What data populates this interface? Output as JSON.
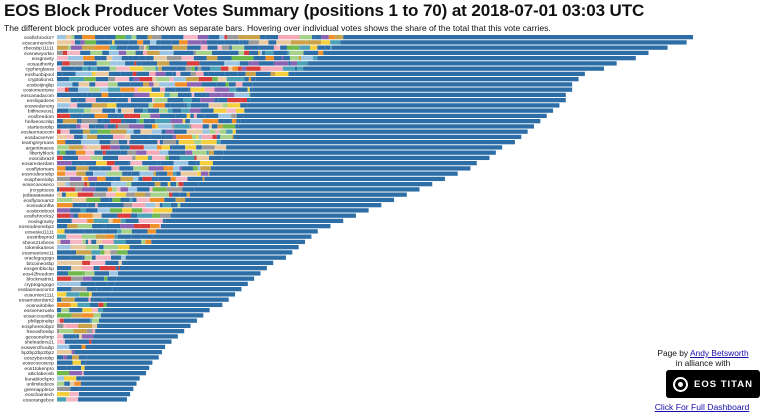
{
  "title": "EOS Block Producer Votes Summary (positions 1 to 70) at 2018-07-01 03:03 UTC",
  "subtitle": "The different block producer votes are shown as separate bars. Hovering over individual votes shows the share of the total that this vote carries.",
  "credit": {
    "prefix": "Page by",
    "author": "Andy Betsworth",
    "alliance": "in alliance with",
    "logo_text": "EOS TITAN",
    "dashboard_link": "Click For Full Dashboard"
  },
  "colors": {
    "main_bar": "#2d6ea6",
    "palette": [
      "#f0902a",
      "#9bc5e3",
      "#6fb84c",
      "#f6b7c5",
      "#999999",
      "#c9a24a",
      "#e9c9a0",
      "#a6d28c",
      "#d93c3a",
      "#8a63b3",
      "#f4d03f",
      "#f7a8b6",
      "#4aa0b5"
    ]
  },
  "chart_data": {
    "type": "bar",
    "orientation": "horizontal",
    "stacked": true,
    "grid": false,
    "legend": "none",
    "categories": [
      "eosfishrocks?",
      "eoscannonchn",
      "zbeosbp11111",
      "eosnewyorkio",
      "eosgravity",
      "eosauthority",
      "cypherglasss",
      "eoshuobipool",
      "cryptolions1",
      "eosbeijingbp",
      "eosiomeetone",
      "eoscanadacom",
      "eosliquideos",
      "eoswedenorg",
      "bitfinexeos1",
      "eosfreedom",
      "helloeoscnbp",
      "starteosiobp",
      "eoslaomaocom",
      "eosdacserver",
      "teamgreymass",
      "argentinaeos",
      "libertyblock",
      "eosriobrazil",
      "eosamsterdam",
      "eosflytomars",
      "eosnodeonebp",
      "eosphereiobp",
      "eosecoeoseco",
      "jrcryptoeos",
      "jedaaaaaaaaa",
      "eosflytomars2",
      "eosnationftw",
      "eosbixinboot",
      "eosfishrocks2",
      "eosisgravity",
      "eosnodeonebp2",
      "eosasia11111",
      "eostribeprod",
      "sheos21sheos",
      "tokenika4eos",
      "eosmeetone11",
      "oraclegogogo",
      "bitcoineosbp",
      "eosgenblockp",
      "eos42freedom",
      "blockmatrix1",
      "cryptogogogo",
      "eoslaomaocom2",
      "eosunion1111",
      "eosamsterdam2",
      "eosnairobike",
      "eosvenezuela",
      "eosaccountbp",
      "philippinebp",
      "eosphereiobp2",
      "freeosfreebp",
      "geosonefortp",
      "sheleaders21",
      "eoswenzhoubp",
      "bp2bp2bp2bp2",
      "eoszybexiobp",
      "eosecoeosecp",
      "eos1tokenpro",
      "atticlabeosb",
      "kunablockpro",
      "unlimitedeos",
      "greenapple1e",
      "eoschaintech",
      "eosorangebox"
    ],
    "series": [
      {
        "values": [
          1.0,
          0.99,
          0.96,
          0.93,
          0.91,
          0.88,
          0.86,
          0.83,
          0.82,
          0.81,
          0.81,
          0.8,
          0.8,
          0.79,
          0.78,
          0.77,
          0.76,
          0.75,
          0.74,
          0.73,
          0.72,
          0.7,
          0.69,
          0.68,
          0.66,
          0.65,
          0.63,
          0.61,
          0.59,
          0.57,
          0.55,
          0.53,
          0.51,
          0.49,
          0.47,
          0.45,
          0.43,
          0.41,
          0.4,
          0.39,
          0.38,
          0.37,
          0.36,
          0.34,
          0.33,
          0.32,
          0.31,
          0.3,
          0.29,
          0.28,
          0.27,
          0.26,
          0.24,
          0.23,
          0.22,
          0.21,
          0.2,
          0.19,
          0.18,
          0.17,
          0.165,
          0.16,
          0.15,
          0.145,
          0.14,
          0.13,
          0.125,
          0.12,
          0.115,
          0.11
        ]
      }
    ]
  }
}
